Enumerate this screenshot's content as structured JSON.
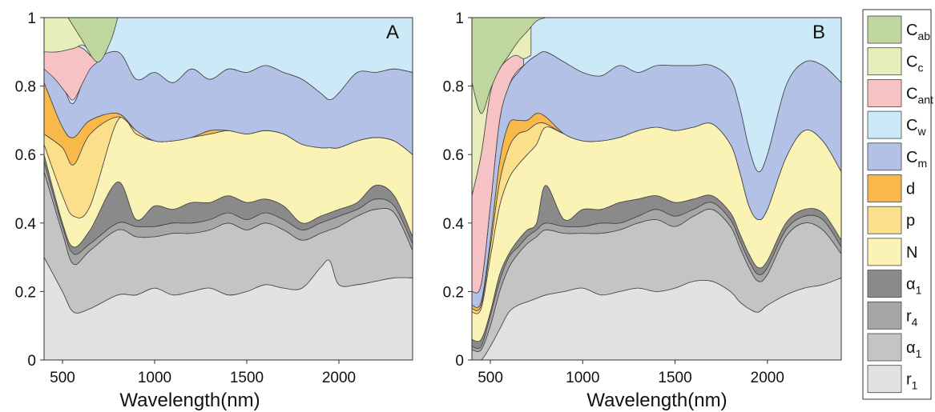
{
  "colors": {
    "r1": "#e2e2e2",
    "alpha1_lower": "#c4c4c4",
    "r4": "#a6a6a6",
    "alpha1_upper": "#8a8a8a",
    "N": "#fbf3b5",
    "p": "#fbdf8b",
    "d": "#f9b84a",
    "Cm": "#b3c1e6",
    "Cw": "#cbe9f6",
    "Cant": "#f6c2c4",
    "Cc": "#e8edbc",
    "Cab": "#bfd79e"
  },
  "chart_data": [
    {
      "type": "area",
      "panel": "A",
      "xlabel": "Wavelength(nm)",
      "ylabel": "",
      "xlim": [
        400,
        2400
      ],
      "ylim": [
        0,
        1
      ],
      "x_ticks": [
        "500",
        "1000",
        "1500",
        "2000"
      ],
      "y_ticks": [
        "0",
        "0.2",
        "0.4",
        "0.6",
        "0.8",
        "1"
      ],
      "x": [
        400,
        500,
        560,
        650,
        800,
        900,
        1000,
        1100,
        1200,
        1300,
        1400,
        1500,
        1600,
        1700,
        1800,
        1900,
        1950,
        2000,
        2100,
        2200,
        2300,
        2400
      ],
      "series": [
        {
          "key": "r1",
          "cumulative": [
            0.3,
            0.2,
            0.14,
            0.15,
            0.19,
            0.19,
            0.21,
            0.19,
            0.2,
            0.21,
            0.19,
            0.2,
            0.22,
            0.21,
            0.21,
            0.27,
            0.29,
            0.22,
            0.22,
            0.23,
            0.24,
            0.24
          ]
        },
        {
          "key": "alpha1_lower",
          "cumulative": [
            0.55,
            0.37,
            0.28,
            0.32,
            0.38,
            0.36,
            0.36,
            0.37,
            0.37,
            0.38,
            0.4,
            0.38,
            0.4,
            0.38,
            0.35,
            0.37,
            0.38,
            0.39,
            0.42,
            0.44,
            0.43,
            0.32
          ]
        },
        {
          "key": "r4",
          "cumulative": [
            0.58,
            0.39,
            0.31,
            0.34,
            0.4,
            0.39,
            0.39,
            0.4,
            0.4,
            0.41,
            0.43,
            0.41,
            0.43,
            0.41,
            0.38,
            0.4,
            0.41,
            0.42,
            0.44,
            0.47,
            0.45,
            0.34
          ]
        },
        {
          "key": "alpha1_upper",
          "cumulative": [
            0.6,
            0.4,
            0.33,
            0.38,
            0.52,
            0.41,
            0.45,
            0.44,
            0.46,
            0.46,
            0.48,
            0.46,
            0.47,
            0.45,
            0.4,
            0.42,
            0.43,
            0.44,
            0.46,
            0.51,
            0.48,
            0.36
          ]
        },
        {
          "key": "N",
          "cumulative": [
            0.63,
            0.48,
            0.42,
            0.45,
            0.7,
            0.66,
            0.64,
            0.64,
            0.65,
            0.66,
            0.67,
            0.66,
            0.67,
            0.66,
            0.63,
            0.62,
            0.62,
            0.62,
            0.64,
            0.65,
            0.64,
            0.6
          ]
        },
        {
          "key": "p",
          "cumulative": [
            0.66,
            0.62,
            0.57,
            0.66,
            0.71,
            0.67,
            0.64,
            0.64,
            0.65,
            0.66,
            0.67,
            0.66,
            0.67,
            0.66,
            0.63,
            0.62,
            0.62,
            0.62,
            0.64,
            0.65,
            0.64,
            0.6
          ]
        },
        {
          "key": "d",
          "cumulative": [
            0.81,
            0.68,
            0.65,
            0.7,
            0.72,
            0.67,
            0.64,
            0.64,
            0.65,
            0.67,
            0.67,
            0.66,
            0.67,
            0.66,
            0.63,
            0.62,
            0.62,
            0.62,
            0.64,
            0.65,
            0.64,
            0.6
          ]
        },
        {
          "key": "Cm",
          "cumulative": [
            0.86,
            0.8,
            0.75,
            0.86,
            0.9,
            0.82,
            0.84,
            0.81,
            0.85,
            0.82,
            0.85,
            0.84,
            0.86,
            0.84,
            0.82,
            0.78,
            0.76,
            0.78,
            0.84,
            0.84,
            0.85,
            0.84
          ]
        },
        {
          "key": "Cw",
          "cumulative": [
            1,
            1,
            1,
            1,
            1,
            1,
            1,
            1,
            1,
            1,
            1,
            1,
            1,
            1,
            1,
            1,
            1,
            1,
            1,
            1,
            1,
            1
          ]
        }
      ],
      "overlays": [
        {
          "key": "Cant",
          "x": [
            400,
            460,
            520,
            560,
            610,
            650,
            690
          ],
          "lower": [
            0.85,
            0.82,
            0.78,
            0.76,
            0.81,
            0.85,
            0.87
          ],
          "upper": [
            0.9,
            0.91,
            0.92,
            0.92,
            0.91,
            0.89,
            0.87
          ]
        },
        {
          "key": "Cc",
          "x": [
            400,
            470,
            560,
            610,
            650,
            690
          ],
          "lower": [
            0.9,
            0.9,
            0.91,
            0.92,
            0.9,
            0.87
          ],
          "upper": [
            1,
            1,
            1,
            1,
            1,
            1
          ]
        },
        {
          "key": "Cab",
          "x": [
            530,
            600,
            690,
            760,
            800
          ],
          "lower": [
            1,
            0.94,
            0.87,
            0.93,
            1
          ],
          "upper": [
            1,
            1,
            1,
            1,
            1
          ]
        }
      ]
    },
    {
      "type": "area",
      "panel": "B",
      "xlabel": "Wavelength(nm)",
      "ylabel": "",
      "xlim": [
        400,
        2400
      ],
      "ylim": [
        0,
        1
      ],
      "x_ticks": [
        "500",
        "1000",
        "1500",
        "2000"
      ],
      "y_ticks": [
        "0",
        "0.2",
        "0.4",
        "0.6",
        "0.8",
        "1"
      ],
      "x": [
        400,
        450,
        500,
        550,
        600,
        650,
        700,
        750,
        800,
        900,
        1000,
        1100,
        1200,
        1300,
        1400,
        1500,
        1600,
        1700,
        1800,
        1850,
        1900,
        1950,
        2000,
        2100,
        2200,
        2300,
        2400
      ],
      "series": [
        {
          "key": "r1",
          "cumulative": [
            0,
            0,
            0.04,
            0.09,
            0.14,
            0.16,
            0.17,
            0.18,
            0.19,
            0.2,
            0.21,
            0.19,
            0.2,
            0.21,
            0.2,
            0.21,
            0.23,
            0.23,
            0.2,
            0.17,
            0.15,
            0.14,
            0.16,
            0.19,
            0.21,
            0.22,
            0.24
          ]
        },
        {
          "key": "alpha1_lower",
          "cumulative": [
            0.03,
            0.03,
            0.1,
            0.2,
            0.27,
            0.31,
            0.34,
            0.36,
            0.38,
            0.37,
            0.37,
            0.37,
            0.38,
            0.4,
            0.41,
            0.39,
            0.42,
            0.44,
            0.39,
            0.33,
            0.27,
            0.23,
            0.25,
            0.36,
            0.4,
            0.38,
            0.31
          ]
        },
        {
          "key": "r4",
          "cumulative": [
            0.04,
            0.04,
            0.13,
            0.23,
            0.3,
            0.33,
            0.36,
            0.38,
            0.4,
            0.39,
            0.39,
            0.4,
            0.4,
            0.42,
            0.44,
            0.42,
            0.44,
            0.46,
            0.41,
            0.35,
            0.29,
            0.25,
            0.27,
            0.38,
            0.42,
            0.41,
            0.33
          ]
        },
        {
          "key": "alpha1_upper",
          "cumulative": [
            0.06,
            0.06,
            0.14,
            0.25,
            0.31,
            0.35,
            0.38,
            0.4,
            0.51,
            0.41,
            0.44,
            0.44,
            0.46,
            0.47,
            0.48,
            0.46,
            0.47,
            0.48,
            0.43,
            0.37,
            0.31,
            0.27,
            0.29,
            0.4,
            0.44,
            0.43,
            0.35
          ]
        },
        {
          "key": "N",
          "cumulative": [
            0.14,
            0.15,
            0.3,
            0.45,
            0.53,
            0.57,
            0.6,
            0.63,
            0.68,
            0.66,
            0.64,
            0.64,
            0.65,
            0.67,
            0.68,
            0.67,
            0.68,
            0.69,
            0.63,
            0.55,
            0.45,
            0.41,
            0.44,
            0.59,
            0.67,
            0.64,
            0.55
          ]
        },
        {
          "key": "p",
          "cumulative": [
            0.15,
            0.16,
            0.33,
            0.52,
            0.62,
            0.66,
            0.67,
            0.69,
            0.69,
            0.66,
            0.64,
            0.64,
            0.65,
            0.67,
            0.68,
            0.67,
            0.68,
            0.69,
            0.63,
            0.55,
            0.45,
            0.41,
            0.44,
            0.59,
            0.67,
            0.64,
            0.55
          ]
        },
        {
          "key": "d",
          "cumulative": [
            0.16,
            0.17,
            0.35,
            0.58,
            0.69,
            0.7,
            0.7,
            0.72,
            0.71,
            0.66,
            0.64,
            0.64,
            0.65,
            0.67,
            0.68,
            0.67,
            0.68,
            0.69,
            0.63,
            0.55,
            0.45,
            0.41,
            0.44,
            0.59,
            0.67,
            0.64,
            0.55
          ]
        },
        {
          "key": "Cm",
          "cumulative": [
            0.2,
            0.22,
            0.45,
            0.7,
            0.8,
            0.84,
            0.87,
            0.89,
            0.9,
            0.87,
            0.84,
            0.83,
            0.86,
            0.84,
            0.86,
            0.86,
            0.86,
            0.86,
            0.82,
            0.74,
            0.62,
            0.55,
            0.6,
            0.8,
            0.87,
            0.86,
            0.81
          ]
        },
        {
          "key": "Cw",
          "cumulative": [
            1,
            1,
            1,
            1,
            1,
            1,
            1,
            1,
            1,
            1,
            1,
            1,
            1,
            1,
            1,
            1,
            1,
            1,
            1,
            1,
            1,
            1,
            1,
            1,
            1,
            1,
            1
          ]
        }
      ],
      "overlays": [
        {
          "key": "Cant",
          "x": [
            400,
            450,
            500,
            550,
            600,
            640,
            680
          ],
          "lower": [
            0.2,
            0.22,
            0.45,
            0.7,
            0.8,
            0.84,
            0.86
          ],
          "upper": [
            0.48,
            0.6,
            0.78,
            0.85,
            0.88,
            0.89,
            0.88
          ]
        },
        {
          "key": "Cc",
          "x": [
            400,
            450,
            500,
            550,
            600,
            640,
            680,
            720
          ],
          "lower": [
            0.48,
            0.6,
            0.78,
            0.85,
            0.88,
            0.89,
            0.88,
            0.89
          ],
          "upper": [
            0.81,
            0.8,
            0.84,
            0.88,
            0.92,
            0.96,
            0.99,
            1
          ]
        },
        {
          "key": "Cab",
          "x": [
            400,
            450,
            500,
            550,
            600,
            650,
            700,
            750,
            800
          ],
          "lower": [
            0.81,
            0.72,
            0.79,
            0.85,
            0.89,
            0.93,
            0.96,
            0.99,
            1
          ],
          "upper": [
            1,
            1,
            1,
            1,
            1,
            1,
            1,
            1,
            1
          ]
        }
      ]
    }
  ],
  "panels": [
    {
      "letter": "A"
    },
    {
      "letter": "B"
    }
  ],
  "legend": [
    {
      "key": "Cab",
      "base": "C",
      "sub": "ab"
    },
    {
      "key": "Cc",
      "base": "C",
      "sub": "c"
    },
    {
      "key": "Cant",
      "base": "C",
      "sub": "ant"
    },
    {
      "key": "Cw",
      "base": "C",
      "sub": "w"
    },
    {
      "key": "Cm",
      "base": "C",
      "sub": "m"
    },
    {
      "key": "d",
      "base": "d",
      "sub": ""
    },
    {
      "key": "p",
      "base": "p",
      "sub": ""
    },
    {
      "key": "N",
      "base": "N",
      "sub": ""
    },
    {
      "key": "alpha1_upper",
      "base": "α",
      "sub": "1"
    },
    {
      "key": "r4",
      "base": "r",
      "sub": "4"
    },
    {
      "key": "alpha1_lower",
      "base": "α",
      "sub": "1"
    },
    {
      "key": "r1",
      "base": "r",
      "sub": "1"
    }
  ]
}
